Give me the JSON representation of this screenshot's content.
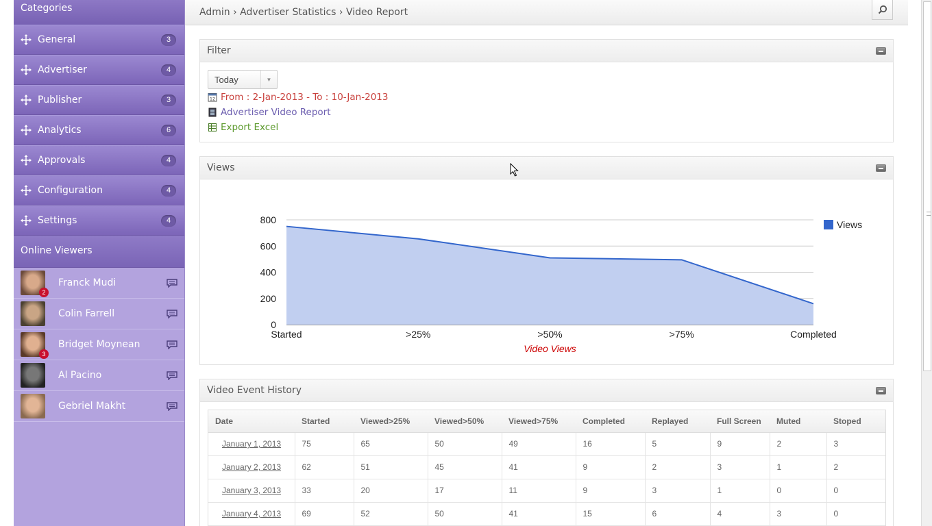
{
  "sidebar": {
    "categories_title": "Categories",
    "items": [
      {
        "label": "General",
        "count": "3"
      },
      {
        "label": "Advertiser",
        "count": "4"
      },
      {
        "label": "Publisher",
        "count": "3"
      },
      {
        "label": "Analytics",
        "count": "6"
      },
      {
        "label": "Approvals",
        "count": "4"
      },
      {
        "label": "Configuration",
        "count": "4"
      },
      {
        "label": "Settings",
        "count": "4"
      }
    ],
    "online_title": "Online Viewers",
    "viewers": [
      {
        "name": "Franck Mudi",
        "badge": "2"
      },
      {
        "name": "Colin Farrell",
        "badge": ""
      },
      {
        "name": "Bridget Moynean",
        "badge": "3"
      },
      {
        "name": "Al Pacino",
        "badge": ""
      },
      {
        "name": "Gebriel Makht",
        "badge": ""
      }
    ]
  },
  "header": {
    "breadcrumb": "Admin › Advertiser Statistics › Video Report"
  },
  "filter": {
    "title": "Filter",
    "range_selected": "Today",
    "date_range": "From : 2-Jan-2013 - To : 10-Jan-2013",
    "report_link": "Advertiser Video Report",
    "export_link": "Export Excel"
  },
  "views": {
    "title": "Views"
  },
  "chart_data": {
    "type": "area",
    "categories": [
      "Started",
      ">25%",
      ">50%",
      ">75%",
      "Completed"
    ],
    "series": [
      {
        "name": "Views",
        "values": [
          750,
          655,
          510,
          495,
          160
        ]
      }
    ],
    "xlabel": "Video Views",
    "ylim": [
      0,
      800
    ],
    "yticks": [
      "0",
      "200",
      "400",
      "600",
      "800"
    ],
    "grid": true,
    "legend": "right",
    "colors": {
      "line": "#3366cc",
      "fill": "#c1cff0",
      "xlabel": "#cc0000"
    }
  },
  "history": {
    "title": "Video Event History",
    "columns": [
      "Date",
      "Started",
      "Viewed>25%",
      "Viewed>50%",
      "Viewed>75%",
      "Completed",
      "Replayed",
      "Full Screen",
      "Muted",
      "Stoped"
    ],
    "rows": [
      [
        "January 1, 2013",
        "75",
        "65",
        "50",
        "49",
        "16",
        "5",
        "9",
        "2",
        "3"
      ],
      [
        "January 2, 2013",
        "62",
        "51",
        "45",
        "41",
        "9",
        "2",
        "3",
        "1",
        "2"
      ],
      [
        "January 3, 2013",
        "33",
        "20",
        "17",
        "11",
        "9",
        "3",
        "1",
        "0",
        "0"
      ],
      [
        "January 4, 2013",
        "69",
        "52",
        "50",
        "41",
        "15",
        "6",
        "4",
        "3",
        "0"
      ]
    ]
  },
  "colors": {
    "sidebar_bg": "#b3a3de",
    "date_text": "#c9423e",
    "report_text": "#6d5fb0",
    "export_text": "#5d9a2e"
  }
}
